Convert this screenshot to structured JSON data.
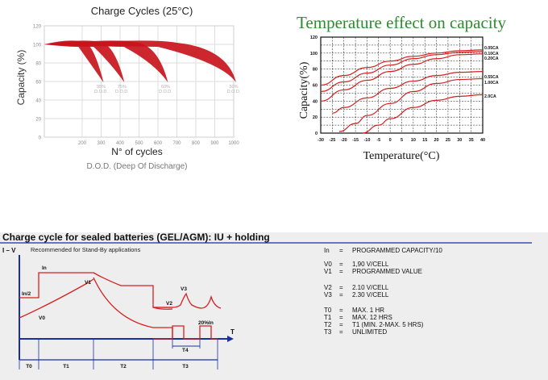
{
  "chart_data": [
    {
      "type": "area",
      "title": "Charge Cycles (25°C)",
      "xlabel": "N° of cycles",
      "subtitle": "D.O.D. (Deep Of Discharge)",
      "ylabel": "Capacity (%)",
      "xlim": [
        0,
        1000
      ],
      "ylim": [
        0,
        120
      ],
      "xticks": [
        "200",
        "300",
        "400",
        "500",
        "600",
        "700",
        "800",
        "900",
        "1000"
      ],
      "yticks": [
        "0",
        "20",
        "40",
        "60",
        "80",
        "100",
        "120"
      ],
      "grid": true,
      "bands": [
        {
          "pct": "95%",
          "dod": "D.O.D.",
          "drop_start": [
            180,
            220
          ],
          "end": 300
        },
        {
          "pct": "75%",
          "dod": "D.O.D.",
          "drop_start": [
            260,
            310
          ],
          "end": 410
        },
        {
          "pct": "60%",
          "dod": "D.O.D.",
          "drop_start": [
            420,
            500
          ],
          "end": 640
        },
        {
          "pct": "50%",
          "dod": "D.O.D.",
          "drop_start": [
            600,
            700
          ],
          "end": 1000
        }
      ]
    },
    {
      "type": "line",
      "title": "Temperature effect on capacity",
      "xlabel": "Temperature(°C)",
      "ylabel": "Capacity(%)",
      "xlim": [
        -30,
        40
      ],
      "ylim": [
        0,
        120
      ],
      "xticks": [
        "-30",
        "-25",
        "-20",
        "-15",
        "-10",
        "-5",
        "0",
        "5",
        "10",
        "15",
        "20",
        "25",
        "30",
        "35",
        "40"
      ],
      "yticks": [
        "0",
        "20",
        "40",
        "60",
        "80",
        "100",
        "120"
      ],
      "grid": true,
      "series": [
        {
          "name": "0.05CA",
          "points": [
            [
              -30,
              60
            ],
            [
              -20,
              72
            ],
            [
              -10,
              82
            ],
            [
              0,
              90
            ],
            [
              10,
              96
            ],
            [
              20,
              100
            ],
            [
              30,
              103
            ],
            [
              40,
              104
            ]
          ]
        },
        {
          "name": "0.10CA",
          "points": [
            [
              -30,
              52
            ],
            [
              -20,
              64
            ],
            [
              -10,
              75
            ],
            [
              0,
              85
            ],
            [
              10,
              93
            ],
            [
              20,
              98
            ],
            [
              30,
              101
            ],
            [
              40,
              102
            ]
          ]
        },
        {
          "name": "0.20CA",
          "points": [
            [
              -30,
              40
            ],
            [
              -20,
              54
            ],
            [
              -10,
              66
            ],
            [
              0,
              77
            ],
            [
              10,
              86
            ],
            [
              20,
              93
            ],
            [
              30,
              98
            ],
            [
              40,
              99
            ]
          ]
        },
        {
          "name": "0.55CA",
          "points": [
            [
              -25,
              25
            ],
            [
              -20,
              32
            ],
            [
              -10,
              44
            ],
            [
              0,
              56
            ],
            [
              10,
              65
            ],
            [
              20,
              72
            ],
            [
              30,
              76
            ],
            [
              40,
              77
            ]
          ]
        },
        {
          "name": "1.00CA",
          "points": [
            [
              -22,
              2
            ],
            [
              -15,
              12
            ],
            [
              -10,
              22
            ],
            [
              0,
              37
            ],
            [
              10,
              52
            ],
            [
              20,
              62
            ],
            [
              30,
              67
            ],
            [
              40,
              68
            ]
          ]
        },
        {
          "name": "2.0CA",
          "points": [
            [
              -12,
              0
            ],
            [
              -5,
              10
            ],
            [
              0,
              18
            ],
            [
              10,
              32
            ],
            [
              20,
              41
            ],
            [
              30,
              46
            ],
            [
              40,
              48
            ]
          ]
        }
      ]
    },
    {
      "type": "line",
      "title": "Charge cycle for sealed batteries (GEL/AGM): IU + holding",
      "subtitle": "Recommended for Stand-By applications",
      "ylabel": "I – V",
      "xlabel": "T",
      "curve_labels": [
        "In",
        "In/2",
        "V1",
        "V0",
        "V2",
        "V3",
        "20%In",
        "T4"
      ],
      "phases": [
        "T0",
        "T1",
        "T2",
        "T3"
      ],
      "legend": [
        {
          "key": "In",
          "eq": "=",
          "val": "PROGRAMMED CAPACITY/10"
        },
        {
          "key": "V0",
          "eq": "=",
          "val": "1,90 V/CELL"
        },
        {
          "key": "V1",
          "eq": "=",
          "val": "PROGRAMMED VALUE"
        },
        {
          "key": "V2",
          "eq": "=",
          "val": "2.10 V/CELL"
        },
        {
          "key": "V3",
          "eq": "=",
          "val": "2.30 V/CELL"
        },
        {
          "key": "T0",
          "eq": "=",
          "val": "MAX. 1 HR"
        },
        {
          "key": "T1",
          "eq": "=",
          "val": "MAX. 12 HRS"
        },
        {
          "key": "T2",
          "eq": "=",
          "val": "T1 (MIN. 2-MAX. 5 HRS)"
        },
        {
          "key": "T3",
          "eq": "=",
          "val": "UNLIMITED"
        }
      ]
    }
  ],
  "colors": {
    "band": "#c8141c",
    "curve": "#d42020",
    "tempTitle": "#2e8b2e",
    "axisBlue": "#1a2fa0",
    "panelBg": "#eeeeee",
    "grid": "#dcdcdc"
  }
}
